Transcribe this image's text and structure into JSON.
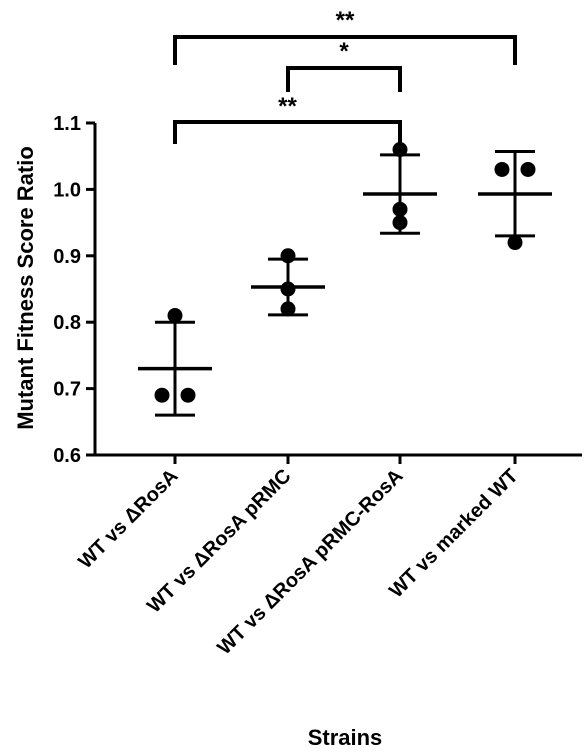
{
  "chart_data": {
    "type": "scatter",
    "title": "",
    "xlabel": "Strains",
    "ylabel": "Mutant Fitness Score Ratio",
    "ylim": [
      0.6,
      1.1
    ],
    "yticks": [
      "0.6",
      "0.7",
      "0.8",
      "0.9",
      "1.0",
      "1.1"
    ],
    "grid": false,
    "categories": [
      "WT vs ΔRosA",
      "WT vs ΔRosA pRMC",
      "WT vs ΔRosA pRMC-RosA",
      "WT vs marked WT"
    ],
    "points": [
      [
        0.69,
        0.69,
        0.81
      ],
      [
        0.82,
        0.85,
        0.9
      ],
      [
        0.95,
        0.97,
        1.06
      ],
      [
        0.92,
        1.03,
        1.03
      ]
    ],
    "means": [
      0.73,
      0.853,
      0.993,
      0.993
    ],
    "errors": [
      [
        0.66,
        0.8
      ],
      [
        0.811,
        0.895
      ],
      [
        0.934,
        1.052
      ],
      [
        0.93,
        1.057
      ]
    ],
    "significance": [
      {
        "from": 0,
        "to": 3,
        "label": "**"
      },
      {
        "from": 1,
        "to": 2,
        "label": "*"
      },
      {
        "from": 0,
        "to": 2,
        "label": "**"
      }
    ]
  },
  "colors": {
    "marks": "#000000",
    "background": "#ffffff"
  }
}
